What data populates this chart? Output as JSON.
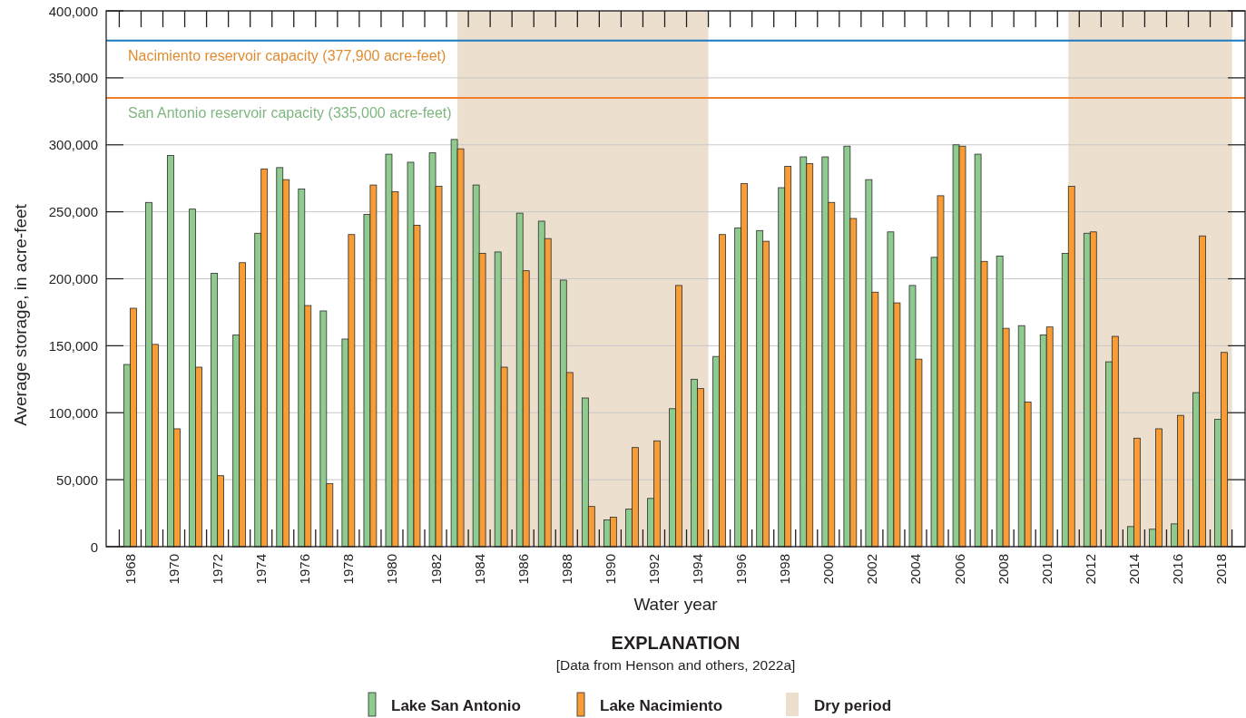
{
  "chart_data": {
    "type": "bar",
    "xlabel": "Water year",
    "ylabel": "Average storage, in acre-feet",
    "legend_title": "EXPLANATION",
    "annotations": [
      "[Data from Henson and others, 2022a]"
    ],
    "x": [
      1968,
      1969,
      1970,
      1971,
      1972,
      1973,
      1974,
      1975,
      1976,
      1977,
      1978,
      1979,
      1980,
      1981,
      1982,
      1983,
      1984,
      1985,
      1986,
      1987,
      1988,
      1989,
      1990,
      1991,
      1992,
      1993,
      1994,
      1995,
      1996,
      1997,
      1998,
      1999,
      2000,
      2001,
      2002,
      2003,
      2004,
      2005,
      2006,
      2007,
      2008,
      2009,
      2010,
      2011,
      2012,
      2013,
      2014,
      2015,
      2016,
      2017,
      2018
    ],
    "series": [
      {
        "name": "Lake San Antonio",
        "color": "#8dcb8f",
        "values": [
          136000,
          257000,
          292000,
          252000,
          204000,
          158000,
          234000,
          283000,
          267000,
          176000,
          155000,
          248000,
          293000,
          287000,
          294000,
          304000,
          270000,
          220000,
          249000,
          243000,
          199000,
          111000,
          20000,
          28000,
          36000,
          103000,
          125000,
          142000,
          238000,
          236000,
          268000,
          291000,
          291000,
          299000,
          274000,
          235000,
          195000,
          216000,
          300000,
          293000,
          217000,
          165000,
          158000,
          219000,
          234000,
          138000,
          15000,
          13000,
          17000,
          115000,
          95000
        ]
      },
      {
        "name": "Lake Nacimiento",
        "color": "#f89c36",
        "values": [
          178000,
          151000,
          88000,
          134000,
          53000,
          212000,
          282000,
          274000,
          180000,
          47000,
          233000,
          270000,
          265000,
          240000,
          269000,
          297000,
          219000,
          134000,
          206000,
          230000,
          130000,
          30000,
          22000,
          74000,
          79000,
          195000,
          118000,
          233000,
          271000,
          228000,
          284000,
          286000,
          257000,
          245000,
          190000,
          182000,
          140000,
          262000,
          299000,
          213000,
          163000,
          108000,
          164000,
          269000,
          235000,
          157000,
          81000,
          88000,
          98000,
          232000,
          145000
        ]
      }
    ],
    "xlim": [
      1966.9,
      2019.1
    ],
    "xticks": [
      1968,
      1970,
      1972,
      1974,
      1976,
      1978,
      1980,
      1982,
      1984,
      1986,
      1988,
      1990,
      1992,
      1994,
      1996,
      1998,
      2000,
      2002,
      2004,
      2006,
      2008,
      2010,
      2012,
      2014,
      2016,
      2018
    ],
    "ylim": [
      0,
      400000
    ],
    "yticks": [
      0,
      {
        "value": 50000,
        "label": "50,000"
      },
      {
        "value": 100000,
        "label": "100,000"
      },
      {
        "value": 150000,
        "label": "150,000"
      },
      {
        "value": 200000,
        "label": "200,000"
      },
      {
        "value": 250000,
        "label": "250,000"
      },
      {
        "value": 300000,
        "label": "300,000"
      },
      {
        "value": 350000,
        "label": "350,000"
      },
      {
        "value": 400000,
        "label": "400,000"
      }
    ],
    "grid": "y",
    "legend": "bottom",
    "ref_lines": [
      {
        "axis": "y",
        "value": 335000,
        "label": "San Antonio reservoir capacity (335,000 acre-feet)",
        "color": "#f07f2a"
      },
      {
        "axis": "y",
        "value": 377900,
        "label": "Nacimiento reservoir capacity (377,900 acre-feet)",
        "color": "#1a7abf"
      }
    ],
    "bands": [
      {
        "axis": "x",
        "from": 1983,
        "to": 1994.5,
        "label": "Dry period",
        "color": "#ecdfce"
      },
      {
        "axis": "x",
        "from": 2011,
        "to": 2018.5,
        "color": "#ecdfce"
      }
    ]
  }
}
